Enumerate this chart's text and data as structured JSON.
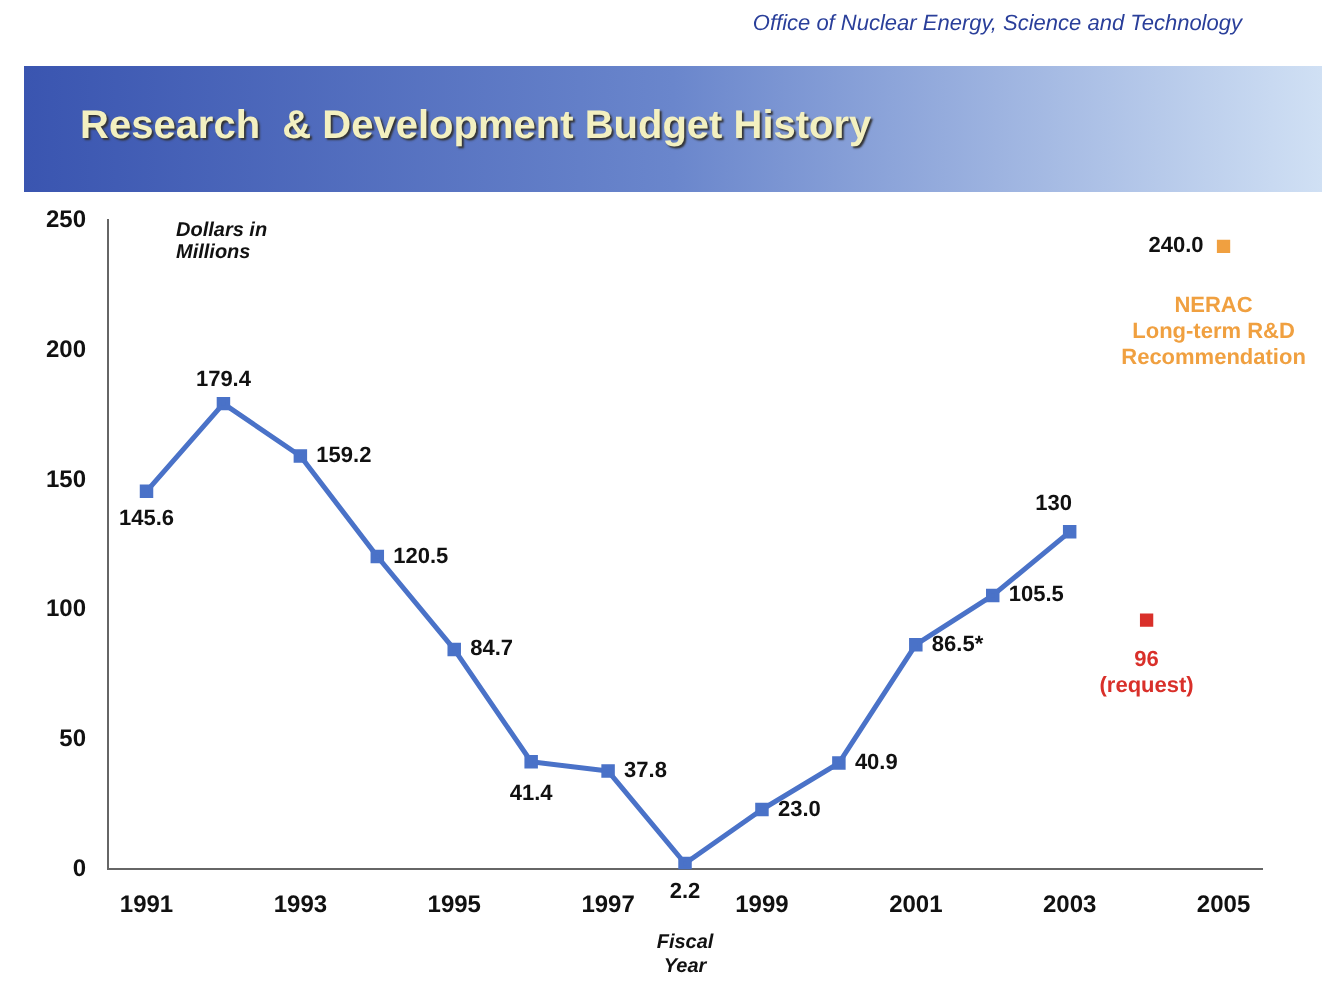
{
  "chart_data": {
    "type": "line",
    "title": "Research  & Development Budget History",
    "subtitle": "Office of Nuclear Energy, Science and Technology",
    "ylabel": "Dollars in Millions",
    "xlabel": "Fiscal Year",
    "xlim": [
      1990.5,
      2005.5
    ],
    "xticks": [
      1991,
      1993,
      1995,
      1997,
      1999,
      2001,
      2003,
      2005
    ],
    "ylim": [
      0,
      250
    ],
    "yticks": [
      0,
      50,
      100,
      150,
      200,
      250
    ],
    "grid": false,
    "legend": false,
    "marker": "square",
    "line_style": "solid",
    "series": [
      {
        "color": "#4a72c8",
        "x": [
          1991,
          1992,
          1993,
          1994,
          1995,
          1996,
          1997,
          1998,
          1999,
          2000,
          2001,
          2002,
          2003
        ],
        "values": [
          145.6,
          179.4,
          159.2,
          120.5,
          84.7,
          41.4,
          37.8,
          2.2,
          23.0,
          40.9,
          86.5,
          105.5,
          130
        ],
        "value_labels": [
          "145.6",
          "179.4",
          "159.2",
          "120.5",
          "84.7",
          "41.4",
          "37.8",
          "2.2",
          "23.0",
          "40.9",
          "86.5*",
          "105.5",
          "130"
        ]
      },
      {
        "type": "scatter",
        "color": "#d9302a",
        "x": [
          2004
        ],
        "values": [
          96
        ],
        "value_labels": [
          "96\n(request)"
        ]
      },
      {
        "type": "scatter",
        "color": "#f0a040",
        "x": [
          2005
        ],
        "values": [
          240
        ],
        "value_labels": [
          "240.0"
        ]
      }
    ],
    "annotations": [
      {
        "text": "NERAC\nLong-term R&D\nRecommendation",
        "x": 2005,
        "y": 240
      }
    ]
  }
}
